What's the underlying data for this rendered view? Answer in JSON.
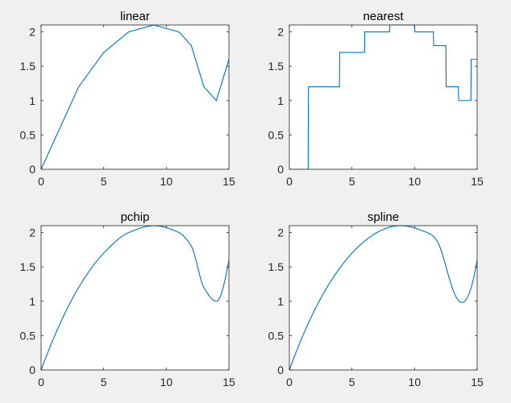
{
  "chart_data": [
    {
      "type": "line",
      "title": "linear",
      "method": "linear",
      "xlim": [
        0,
        15
      ],
      "ylim": [
        0,
        2.1
      ],
      "xticks": [
        0,
        5,
        10,
        15
      ],
      "yticks": [
        0,
        0.5,
        1,
        1.5,
        2
      ],
      "grid": false,
      "series": [
        {
          "x": [
            0,
            3,
            5,
            7,
            9,
            11,
            12,
            13,
            14,
            15
          ],
          "y": [
            0,
            1.2,
            1.7,
            2.0,
            2.1,
            2.0,
            1.8,
            1.2,
            1.0,
            1.6
          ]
        }
      ]
    },
    {
      "type": "line",
      "title": "nearest",
      "method": "nearest",
      "xlim": [
        0,
        15
      ],
      "ylim": [
        0,
        2.1
      ],
      "xticks": [
        0,
        5,
        10,
        15
      ],
      "yticks": [
        0,
        0.5,
        1,
        1.5,
        2
      ],
      "grid": false,
      "series": [
        {
          "x": [
            0,
            3,
            5,
            7,
            9,
            11,
            12,
            13,
            14,
            15
          ],
          "y": [
            0,
            1.2,
            1.7,
            2.0,
            2.1,
            2.0,
            1.8,
            1.2,
            1.0,
            1.6
          ]
        }
      ]
    },
    {
      "type": "line",
      "title": "pchip",
      "method": "pchip",
      "xlim": [
        0,
        15
      ],
      "ylim": [
        0,
        2.1
      ],
      "xticks": [
        0,
        5,
        10,
        15
      ],
      "yticks": [
        0,
        0.5,
        1,
        1.5,
        2
      ],
      "grid": false,
      "series": [
        {
          "x": [
            0,
            3,
            5,
            7,
            9,
            11,
            12,
            13,
            14,
            15
          ],
          "y": [
            0,
            1.2,
            1.7,
            2.0,
            2.1,
            2.0,
            1.8,
            1.2,
            1.0,
            1.6
          ]
        }
      ]
    },
    {
      "type": "line",
      "title": "spline",
      "method": "spline",
      "xlim": [
        0,
        15
      ],
      "ylim": [
        0,
        2.1
      ],
      "xticks": [
        0,
        5,
        10,
        15
      ],
      "yticks": [
        0,
        0.5,
        1,
        1.5,
        2
      ],
      "grid": false,
      "series": [
        {
          "x": [
            0,
            3,
            5,
            7,
            9,
            11,
            12,
            13,
            14,
            15
          ],
          "y": [
            0,
            1.2,
            1.7,
            2.0,
            2.1,
            2.0,
            1.8,
            1.2,
            1.0,
            1.6
          ]
        }
      ]
    }
  ],
  "style": {
    "figure_background": "#f0f0f0",
    "axes_background": "#ffffff",
    "axes_color": "#262626",
    "line_color": "#0072bd"
  }
}
